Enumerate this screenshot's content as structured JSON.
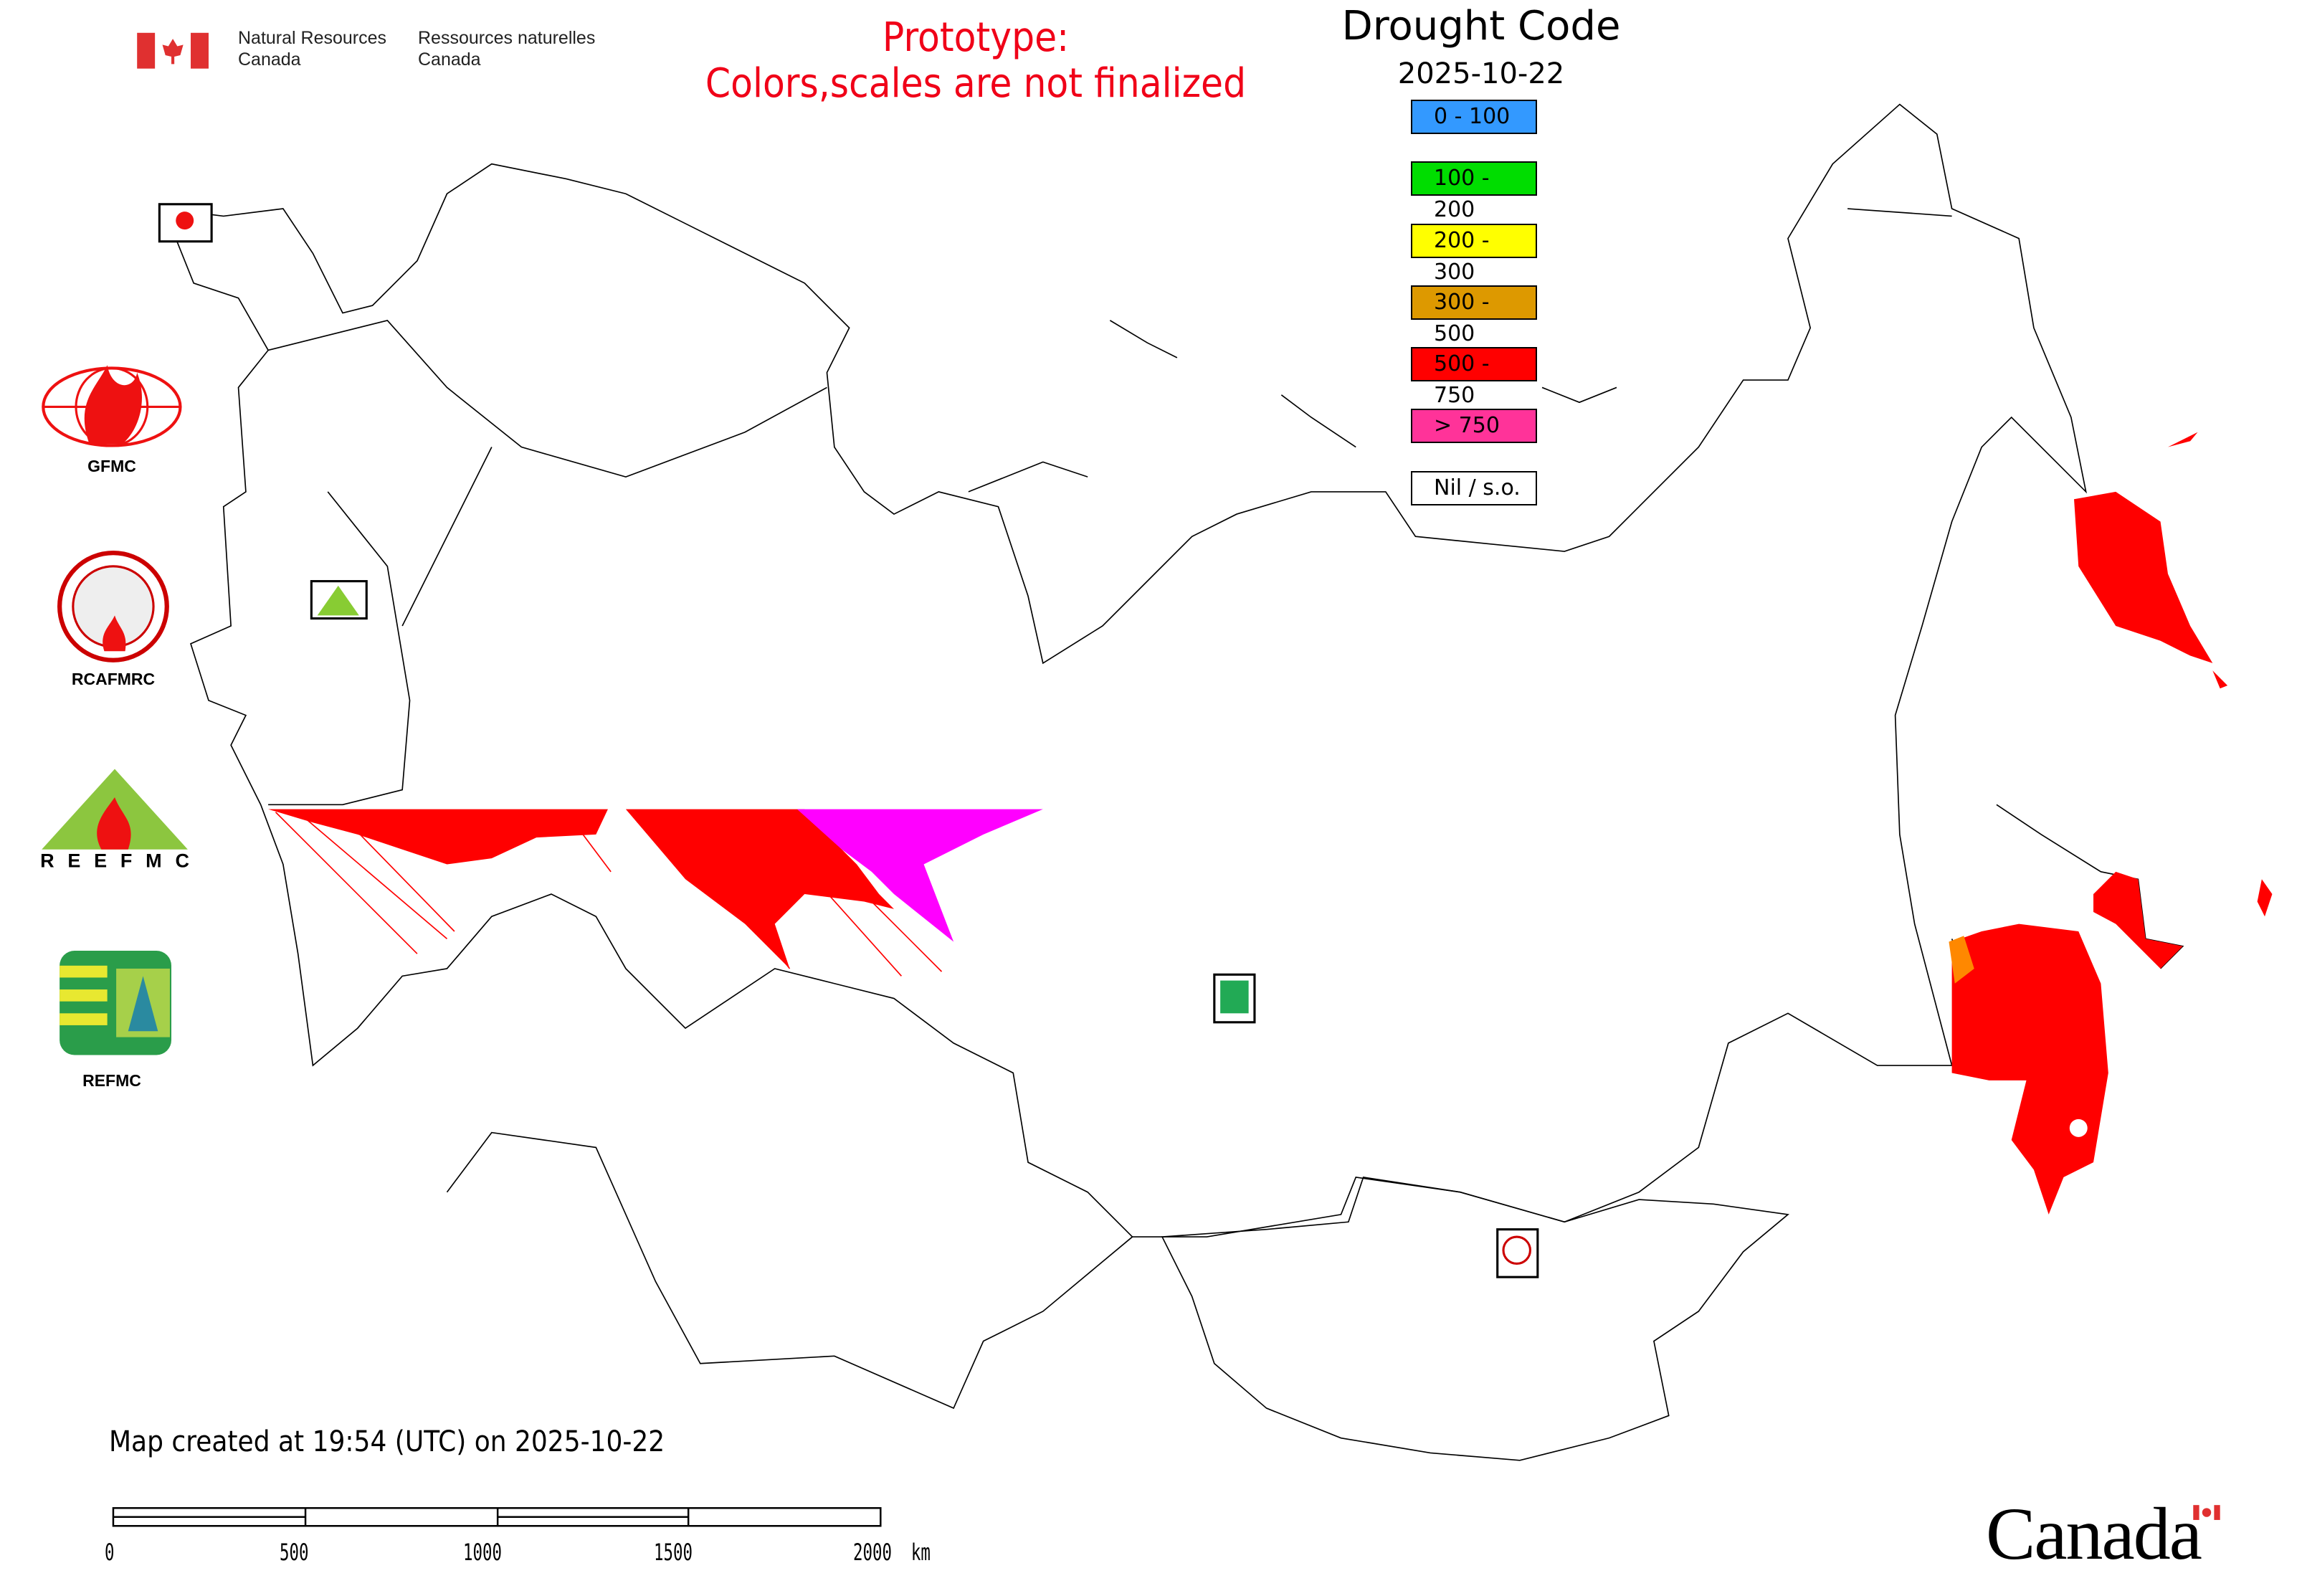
{
  "header": {
    "agency_en": [
      "Natural Resources",
      "Canada"
    ],
    "agency_fr": [
      "Ressources naturelles",
      "Canada"
    ],
    "prototype_line1": "Prototype:",
    "prototype_line2": "Colors,scales are not finalized",
    "prototype_color": "#f00018"
  },
  "legend": {
    "title": "Drought Code",
    "date": "2025-10-22",
    "items": [
      {
        "label": "0 - 100",
        "color": "#3399ff"
      },
      {
        "label": "100 - 200",
        "color": "#00dd00"
      },
      {
        "label": "200 - 300",
        "color": "#ffff00"
      },
      {
        "label": "300 - 500",
        "color": "#dd9900"
      },
      {
        "label": "500 - 750",
        "color": "#ff0000"
      },
      {
        "label": "> 750",
        "color": "#ff3399"
      },
      {
        "label": "Nil / s.o.",
        "color": "#ffffff"
      }
    ]
  },
  "partner_logos": [
    {
      "label": "GFMC",
      "icon": "gfmc-globe-flame-logo"
    },
    {
      "label": "RCAFMRC",
      "icon": "rcafmrc-seal-logo"
    },
    {
      "label": "",
      "icon": "reefmc-triangle-logo",
      "logo_text": "REEFMC"
    },
    {
      "label": "REFMC",
      "icon": "refmc-green-logo"
    }
  ],
  "map": {
    "fill_colors_present": [
      "#ff0000",
      "#ff00ff",
      "#ff8800"
    ]
  },
  "footer": {
    "created": "Map created at 19:54 (UTC) on 2025-10-22",
    "scale_labels": [
      "0",
      "500",
      "1000",
      "1500",
      "2000  km"
    ],
    "wordmark": "Canada"
  }
}
